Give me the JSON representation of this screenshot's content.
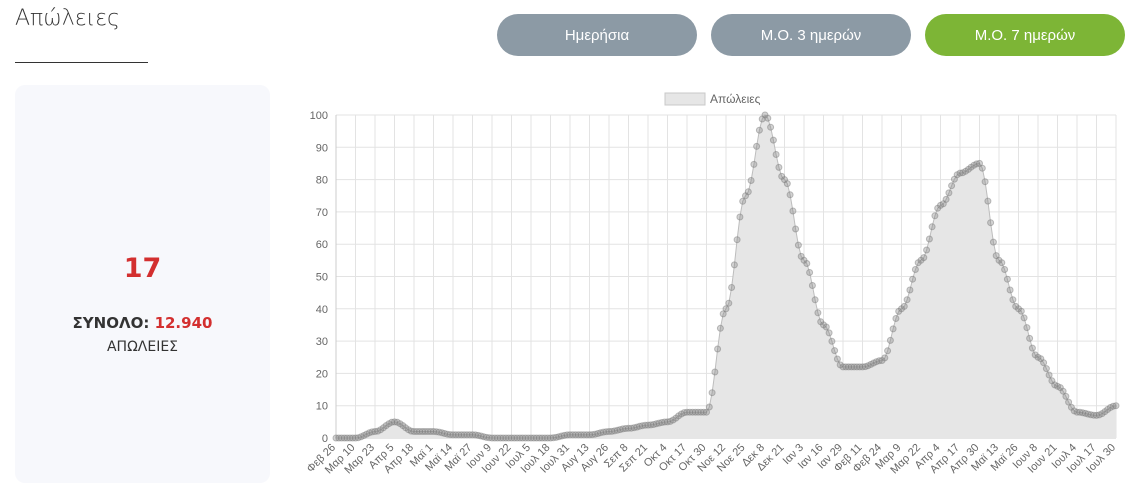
{
  "page": {
    "title": "Απώλειες"
  },
  "buttons": [
    {
      "label": "Ημερήσια",
      "active": false
    },
    {
      "label": "Μ.Ο. 3 ημερών",
      "active": false
    },
    {
      "label": "Μ.Ο. 7 ημερών",
      "active": true
    }
  ],
  "colors": {
    "accent_green": "#7db536",
    "button_gray": "#8c9aa5",
    "value_red": "#d32f2f",
    "area_fill": "#e6e6e6",
    "point_color": "#808080"
  },
  "stats": {
    "value": "17",
    "total_label": "ΣΥΝΟΛΟ:",
    "total_value": "12.940",
    "caption": "ΑΠΩΛΕΙΕΣ"
  },
  "chart_data": {
    "type": "area",
    "legend": {
      "label": "Απώλειες",
      "position": "top"
    },
    "ylim": [
      0,
      100
    ],
    "yticks": [
      0,
      10,
      20,
      30,
      40,
      50,
      60,
      70,
      80,
      90,
      100
    ],
    "grid": true,
    "xtick_labels": [
      "Φεβ 26",
      "Μαρ 10",
      "Μαρ 23",
      "Απρ 5",
      "Απρ 18",
      "Μαϊ 1",
      "Μαϊ 14",
      "Μαϊ 27",
      "Ιουν 9",
      "Ιουν 22",
      "Ιουλ 5",
      "Ιουλ 18",
      "Ιουλ 31",
      "Αυγ 13",
      "Αυγ 26",
      "Σεπ 8",
      "Σεπ 21",
      "Οκτ 4",
      "Οκτ 17",
      "Οκτ 30",
      "Νοε 12",
      "Νοε 25",
      "Δεκ 8",
      "Δεκ 21",
      "Ιαν 3",
      "Ιαν 16",
      "Ιαν 29",
      "Φεβ 11",
      "Φεβ 24",
      "Μαρ 9",
      "Μαρ 22",
      "Απρ 4",
      "Απρ 17",
      "Απρ 30",
      "Μαϊ 13",
      "Μαϊ 26",
      "Ιουν 8",
      "Ιουν 21",
      "Ιουλ 4",
      "Ιουλ 17",
      "Ιουλ 30"
    ],
    "series": [
      {
        "name": "Απώλειες",
        "x": [
          "Φεβ 26",
          "Μαρ 10",
          "Μαρ 23",
          "Απρ 5",
          "Απρ 18",
          "Μαϊ 1",
          "Μαϊ 14",
          "Μαϊ 27",
          "Ιουν 9",
          "Ιουν 22",
          "Ιουλ 5",
          "Ιουλ 18",
          "Ιουλ 31",
          "Αυγ 13",
          "Αυγ 26",
          "Σεπ 8",
          "Σεπ 21",
          "Οκτ 4",
          "Οκτ 17",
          "Οκτ 30",
          "Νοε 12",
          "Νοε 25",
          "Δεκ 8",
          "Δεκ 21",
          "Ιαν 3",
          "Ιαν 16",
          "Ιαν 29",
          "Φεβ 11",
          "Φεβ 24",
          "Μαρ 9",
          "Μαρ 22",
          "Απρ 4",
          "Απρ 17",
          "Απρ 30",
          "Μαϊ 13",
          "Μαϊ 26",
          "Ιουν 8",
          "Ιουν 21",
          "Ιουλ 4",
          "Ιουλ 17",
          "Ιουλ 30"
        ],
        "values": [
          0,
          0,
          2,
          5,
          2,
          2,
          1,
          1,
          0,
          0,
          0,
          0,
          1,
          1,
          2,
          3,
          4,
          5,
          8,
          8,
          40,
          75,
          100,
          80,
          55,
          35,
          22,
          22,
          24,
          40,
          55,
          72,
          82,
          85,
          55,
          40,
          25,
          16,
          8,
          7,
          10
        ]
      }
    ]
  }
}
